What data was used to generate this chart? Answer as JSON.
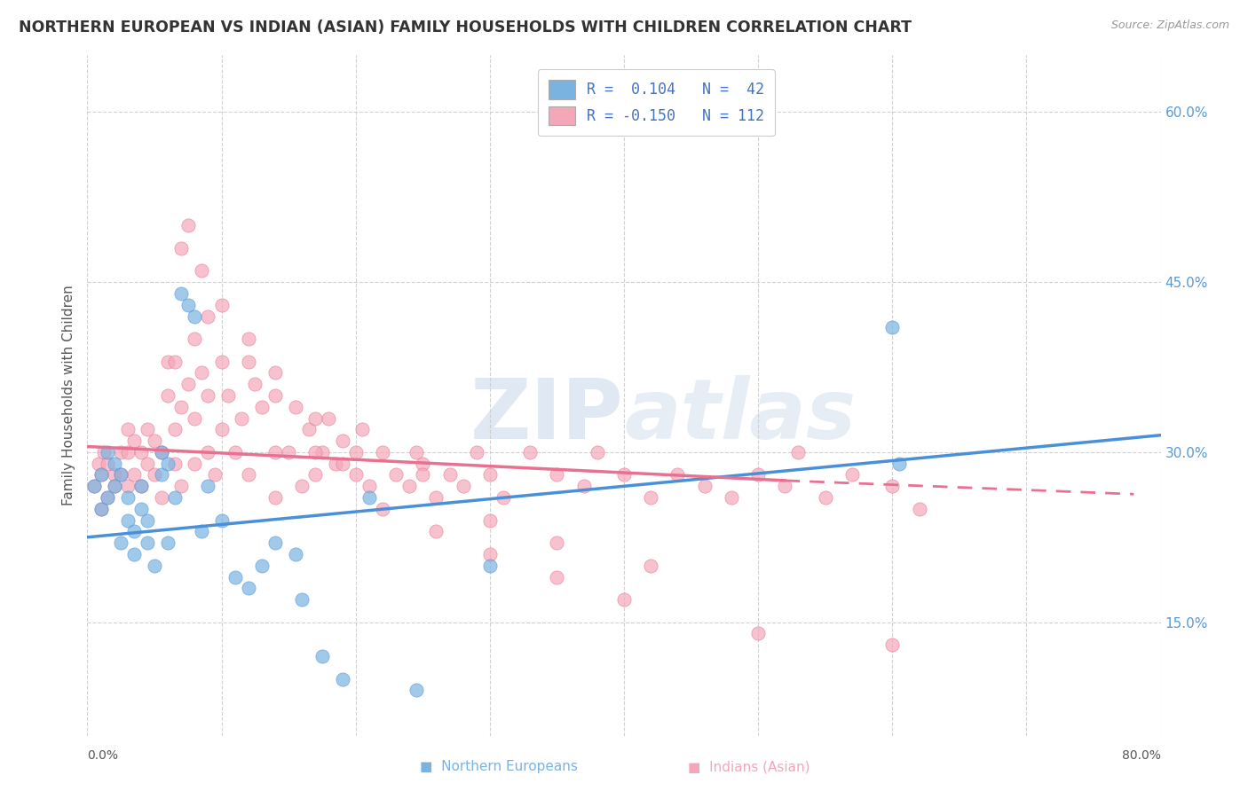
{
  "title": "NORTHERN EUROPEAN VS INDIAN (ASIAN) FAMILY HOUSEHOLDS WITH CHILDREN CORRELATION CHART",
  "source": "Source: ZipAtlas.com",
  "ylabel": "Family Households with Children",
  "yticks_vals": [
    0.15,
    0.3,
    0.45,
    0.6
  ],
  "xmin": 0.0,
  "xmax": 0.8,
  "ymin": 0.05,
  "ymax": 0.65,
  "r_blue": 0.104,
  "n_blue": 42,
  "r_pink": -0.15,
  "n_pink": 112,
  "blue_color": "#7ab3e0",
  "pink_color": "#f4a7b9",
  "blue_line_color": "#4a90d9",
  "pink_line_color": "#e87090",
  "watermark": "ZIPAtlas",
  "blue_scatter_x": [
    0.005,
    0.01,
    0.01,
    0.015,
    0.015,
    0.02,
    0.02,
    0.025,
    0.025,
    0.03,
    0.03,
    0.035,
    0.035,
    0.04,
    0.04,
    0.045,
    0.045,
    0.05,
    0.055,
    0.055,
    0.06,
    0.06,
    0.065,
    0.07,
    0.075,
    0.08,
    0.085,
    0.09,
    0.1,
    0.11,
    0.12,
    0.13,
    0.14,
    0.155,
    0.16,
    0.175,
    0.19,
    0.21,
    0.245,
    0.3,
    0.6,
    0.605
  ],
  "blue_scatter_y": [
    0.27,
    0.28,
    0.25,
    0.3,
    0.26,
    0.29,
    0.27,
    0.28,
    0.22,
    0.26,
    0.24,
    0.23,
    0.21,
    0.25,
    0.27,
    0.22,
    0.24,
    0.2,
    0.28,
    0.3,
    0.22,
    0.29,
    0.26,
    0.44,
    0.43,
    0.42,
    0.23,
    0.27,
    0.24,
    0.19,
    0.18,
    0.2,
    0.22,
    0.21,
    0.17,
    0.12,
    0.1,
    0.26,
    0.09,
    0.2,
    0.41,
    0.29
  ],
  "pink_scatter_x": [
    0.005,
    0.008,
    0.01,
    0.01,
    0.012,
    0.015,
    0.015,
    0.02,
    0.02,
    0.025,
    0.025,
    0.03,
    0.03,
    0.03,
    0.035,
    0.035,
    0.04,
    0.04,
    0.045,
    0.045,
    0.05,
    0.05,
    0.055,
    0.055,
    0.06,
    0.06,
    0.065,
    0.065,
    0.07,
    0.07,
    0.075,
    0.08,
    0.08,
    0.085,
    0.09,
    0.09,
    0.095,
    0.1,
    0.105,
    0.11,
    0.115,
    0.12,
    0.125,
    0.13,
    0.14,
    0.14,
    0.15,
    0.16,
    0.165,
    0.17,
    0.175,
    0.18,
    0.185,
    0.19,
    0.2,
    0.205,
    0.21,
    0.22,
    0.23,
    0.24,
    0.245,
    0.25,
    0.26,
    0.27,
    0.28,
    0.29,
    0.3,
    0.31,
    0.33,
    0.35,
    0.37,
    0.38,
    0.4,
    0.42,
    0.44,
    0.46,
    0.48,
    0.5,
    0.52,
    0.53,
    0.55,
    0.57,
    0.6,
    0.62,
    0.065,
    0.08,
    0.09,
    0.1,
    0.12,
    0.14,
    0.155,
    0.17,
    0.19,
    0.22,
    0.26,
    0.3,
    0.35,
    0.4,
    0.5,
    0.6,
    0.07,
    0.075,
    0.085,
    0.1,
    0.12,
    0.14,
    0.17,
    0.2,
    0.25,
    0.3,
    0.35,
    0.42
  ],
  "pink_scatter_y": [
    0.27,
    0.29,
    0.25,
    0.28,
    0.3,
    0.26,
    0.29,
    0.28,
    0.27,
    0.3,
    0.28,
    0.27,
    0.3,
    0.32,
    0.28,
    0.31,
    0.27,
    0.3,
    0.29,
    0.32,
    0.31,
    0.28,
    0.3,
    0.26,
    0.35,
    0.38,
    0.32,
    0.29,
    0.34,
    0.27,
    0.36,
    0.33,
    0.29,
    0.37,
    0.3,
    0.35,
    0.28,
    0.32,
    0.35,
    0.3,
    0.33,
    0.28,
    0.36,
    0.34,
    0.3,
    0.26,
    0.3,
    0.27,
    0.32,
    0.28,
    0.3,
    0.33,
    0.29,
    0.31,
    0.28,
    0.32,
    0.27,
    0.3,
    0.28,
    0.27,
    0.3,
    0.29,
    0.26,
    0.28,
    0.27,
    0.3,
    0.28,
    0.26,
    0.3,
    0.28,
    0.27,
    0.3,
    0.28,
    0.26,
    0.28,
    0.27,
    0.26,
    0.28,
    0.27,
    0.3,
    0.26,
    0.28,
    0.27,
    0.25,
    0.38,
    0.4,
    0.42,
    0.38,
    0.38,
    0.35,
    0.34,
    0.3,
    0.29,
    0.25,
    0.23,
    0.21,
    0.19,
    0.17,
    0.14,
    0.13,
    0.48,
    0.5,
    0.46,
    0.43,
    0.4,
    0.37,
    0.33,
    0.3,
    0.28,
    0.24,
    0.22,
    0.2
  ]
}
